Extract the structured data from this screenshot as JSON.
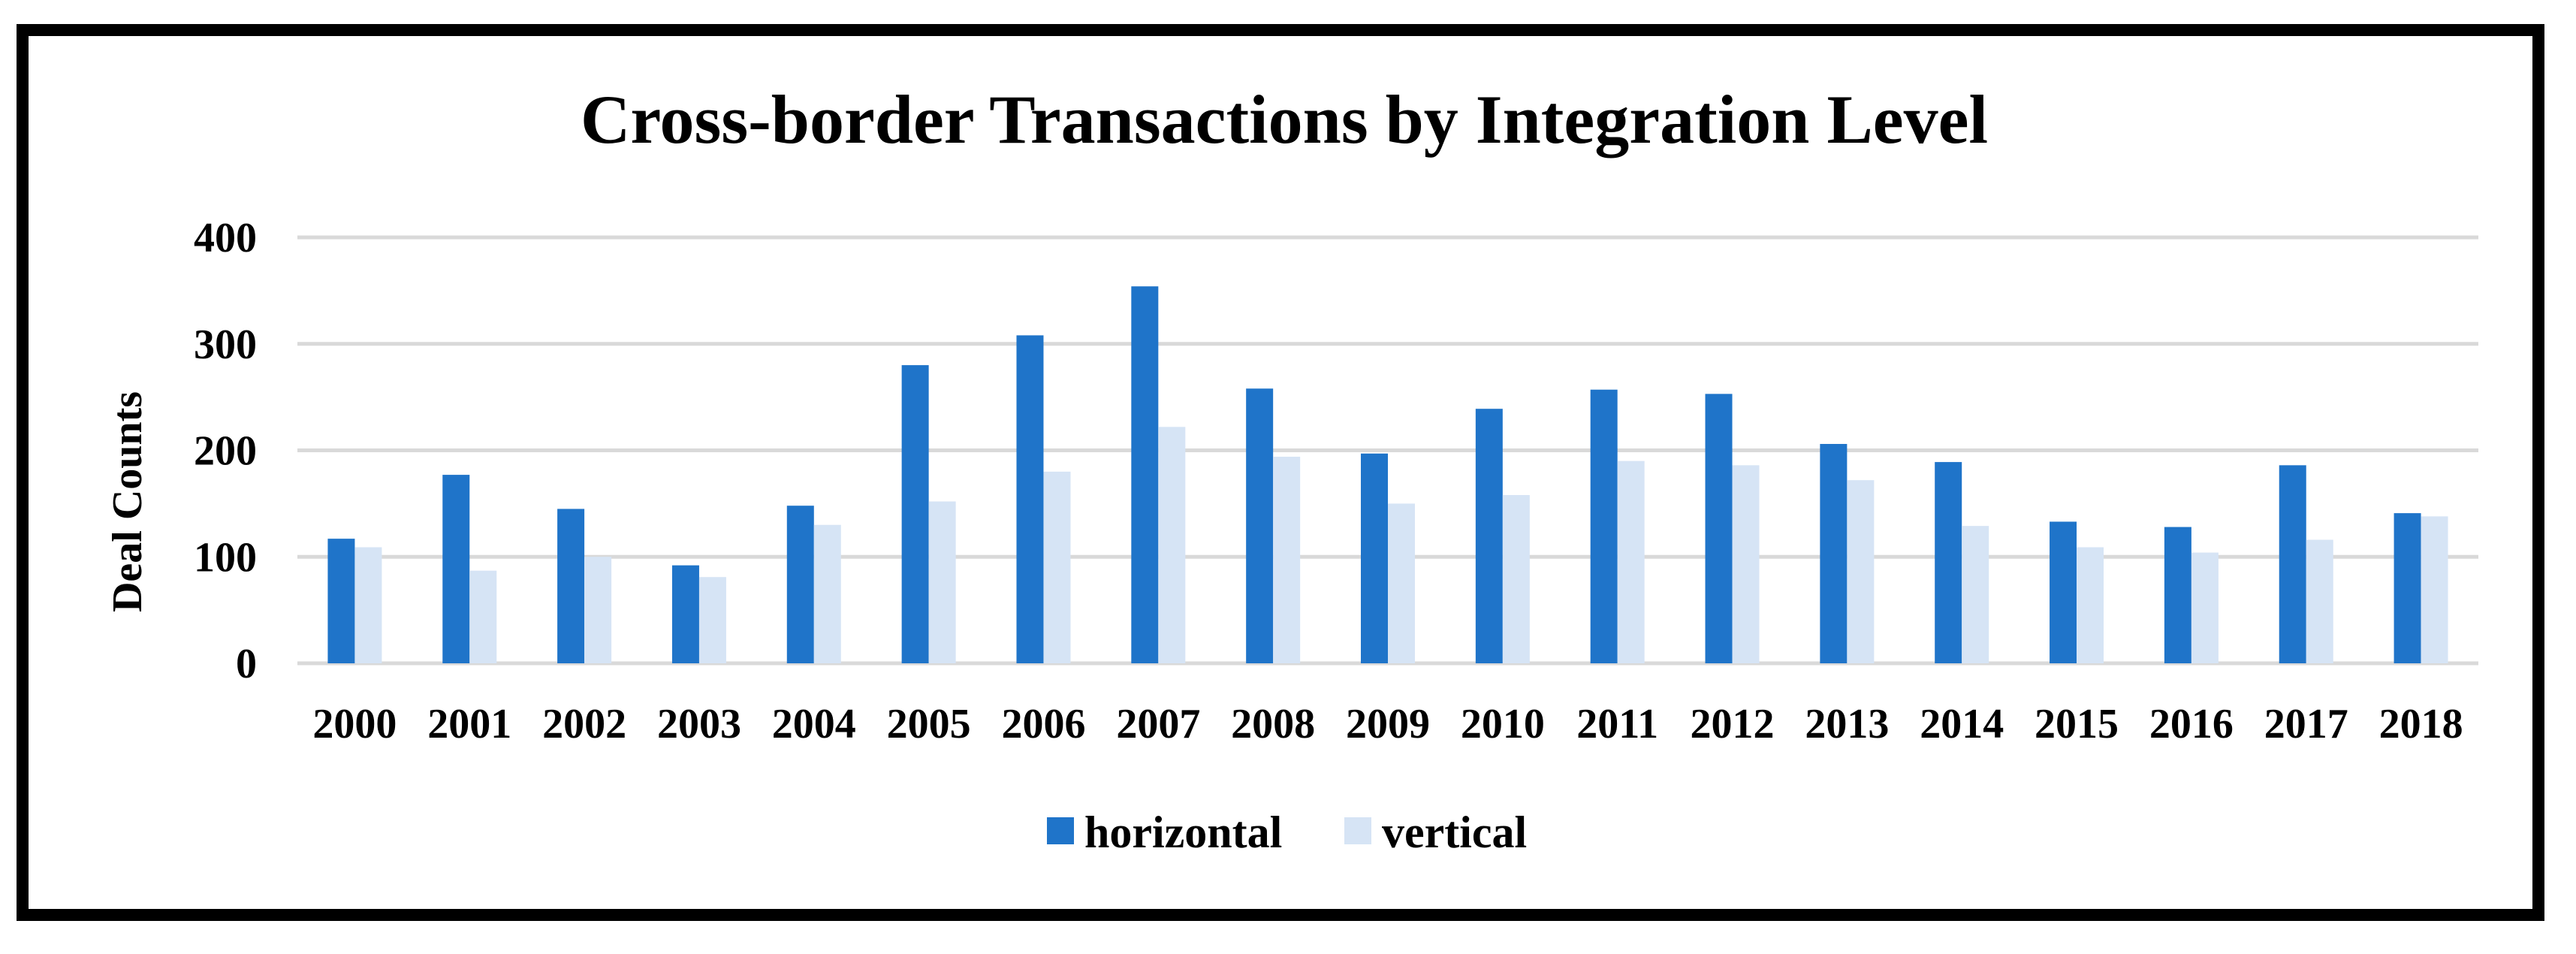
{
  "chart_data": {
    "type": "bar",
    "title": "Cross-border Transactions by Integration Level",
    "xlabel": "",
    "ylabel": "Deal Counts",
    "ylim": [
      0,
      400
    ],
    "yticks": [
      0,
      100,
      200,
      300,
      400
    ],
    "grid": true,
    "legend_position": "bottom",
    "categories": [
      "2000",
      "2001",
      "2002",
      "2003",
      "2004",
      "2005",
      "2006",
      "2007",
      "2008",
      "2009",
      "2010",
      "2011",
      "2012",
      "2013",
      "2014",
      "2015",
      "2016",
      "2017",
      "2018"
    ],
    "series": [
      {
        "name": "horizontal",
        "color": "#1f74c9",
        "values": [
          117,
          177,
          145,
          92,
          148,
          280,
          308,
          354,
          258,
          197,
          239,
          257,
          253,
          206,
          189,
          133,
          128,
          186,
          141
        ]
      },
      {
        "name": "vertical",
        "color": "#d6e4f5",
        "values": [
          109,
          87,
          100,
          81,
          130,
          152,
          180,
          222,
          194,
          150,
          158,
          190,
          186,
          172,
          129,
          109,
          104,
          116,
          138
        ]
      }
    ]
  }
}
